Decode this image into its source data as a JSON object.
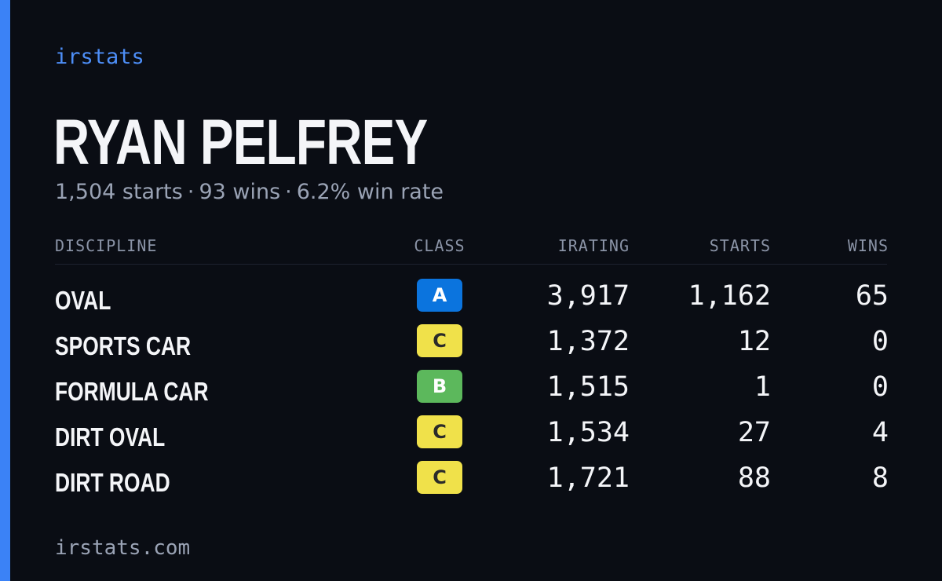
{
  "brand": "irstats",
  "player": {
    "name": "RYAN PELFREY",
    "starts_text": "1,504 starts",
    "wins_text": "93 wins",
    "win_rate_text": "6.2% win rate",
    "separator": "·"
  },
  "table": {
    "headers": {
      "discipline": "DISCIPLINE",
      "class": "CLASS",
      "irating": "IRATING",
      "starts": "STARTS",
      "wins": "WINS"
    },
    "rows": [
      {
        "discipline": "OVAL",
        "class": "A",
        "class_bg": "#0b74de",
        "class_fg": "#ffffff",
        "irating": "3,917",
        "starts": "1,162",
        "wins": "65"
      },
      {
        "discipline": "SPORTS CAR",
        "class": "C",
        "class_bg": "#f0e14a",
        "class_fg": "#2a2a2a",
        "irating": "1,372",
        "starts": "12",
        "wins": "0"
      },
      {
        "discipline": "FORMULA CAR",
        "class": "B",
        "class_bg": "#5cb85c",
        "class_fg": "#ffffff",
        "irating": "1,515",
        "starts": "1",
        "wins": "0"
      },
      {
        "discipline": "DIRT OVAL",
        "class": "C",
        "class_bg": "#f0e14a",
        "class_fg": "#2a2a2a",
        "irating": "1,534",
        "starts": "27",
        "wins": "4"
      },
      {
        "discipline": "DIRT ROAD",
        "class": "C",
        "class_bg": "#f0e14a",
        "class_fg": "#2a2a2a",
        "irating": "1,721",
        "starts": "88",
        "wins": "8"
      }
    ]
  },
  "footer": "irstats.com",
  "colors": {
    "background": "#0a0d14",
    "accent": "#3b82f6",
    "brand_text": "#4d8ef7",
    "muted_text": "#9aa3b5"
  }
}
